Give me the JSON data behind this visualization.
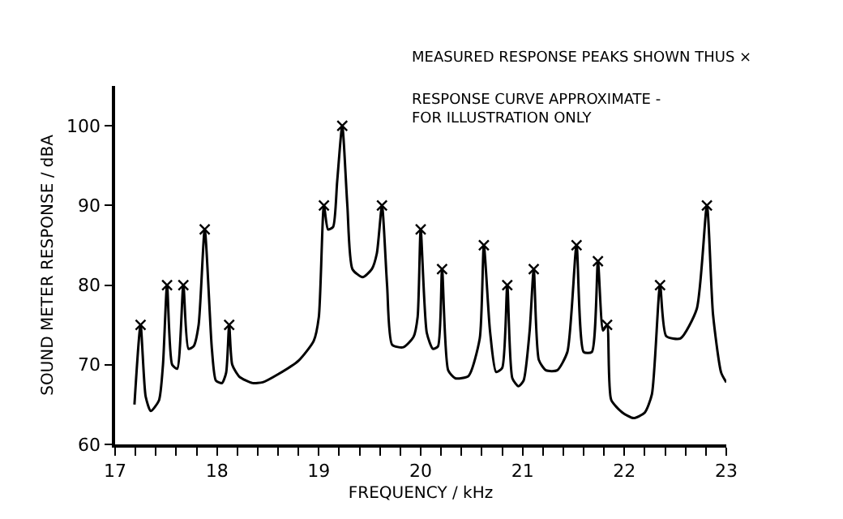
{
  "chart_data": {
    "type": "line",
    "xlabel": "FREQUENCY / kHz",
    "ylabel": "SOUND METER RESPONSE / dBA",
    "annotations": [
      "MEASURED RESPONSE PEAKS SHOWN THUS ×",
      "RESPONSE CURVE APPROXIMATE -\nFOR ILLUSTRATION ONLY"
    ],
    "series": [
      {
        "color": "#000000",
        "marker": "none",
        "line_style": "solid",
        "x": [
          17.19,
          17.25,
          17.3,
          17.35,
          17.43,
          17.47,
          17.51,
          17.56,
          17.61,
          17.67,
          17.72,
          17.77,
          17.82,
          17.88,
          17.95,
          17.99,
          18.05,
          18.09,
          18.12,
          18.15,
          18.22,
          18.35,
          18.45,
          18.6,
          18.8,
          18.95,
          19.0,
          19.05,
          19.09,
          19.14,
          19.18,
          19.23,
          19.28,
          19.33,
          19.43,
          19.52,
          19.57,
          19.62,
          19.67,
          19.72,
          19.83,
          19.93,
          19.97,
          20.0,
          20.06,
          20.12,
          20.17,
          20.21,
          20.27,
          20.34,
          20.47,
          20.58,
          20.62,
          20.68,
          20.74,
          20.8,
          20.85,
          20.9,
          20.96,
          21.01,
          21.07,
          21.11,
          21.16,
          21.23,
          21.34,
          21.44,
          21.53,
          21.6,
          21.68,
          21.74,
          21.79,
          21.83,
          21.87,
          21.98,
          22.09,
          22.2,
          22.27,
          22.35,
          22.41,
          22.55,
          22.71,
          22.81,
          22.87,
          22.95,
          23.0
        ],
        "values": [
          65,
          75,
          66,
          64.2,
          65.5,
          70,
          80,
          70,
          69.5,
          80,
          72,
          72.3,
          75,
          87,
          72,
          68,
          67.7,
          69,
          75,
          70,
          68.5,
          67.7,
          67.8,
          68.8,
          70.5,
          73,
          76,
          90,
          87,
          87.3,
          93,
          100,
          90,
          82,
          81,
          82,
          84,
          90,
          80,
          72.5,
          72.2,
          73.5,
          76,
          87,
          74,
          72,
          72.3,
          82,
          69.3,
          68.3,
          68.6,
          73.3,
          85,
          74.3,
          69.1,
          69.6,
          80,
          68.3,
          67.3,
          68,
          74.3,
          82,
          70.6,
          69.3,
          69.3,
          71.6,
          85,
          71.6,
          71.6,
          83,
          74.3,
          75,
          65.6,
          64,
          63.3,
          64,
          66.3,
          80,
          73.6,
          73.3,
          77,
          90,
          76.3,
          69,
          67.8
        ]
      },
      {
        "type": "scatter",
        "color": "#000000",
        "marker": "cross",
        "x": [
          17.25,
          17.51,
          17.67,
          17.88,
          18.12,
          19.05,
          19.23,
          19.62,
          20.0,
          20.21,
          20.62,
          20.85,
          21.11,
          21.53,
          21.74,
          21.83,
          22.35,
          22.81
        ],
        "values": [
          75,
          80,
          80,
          87,
          75,
          90,
          100,
          90,
          87,
          82,
          85,
          80,
          82,
          85,
          83,
          75,
          80,
          90
        ]
      }
    ],
    "xlim": [
      17,
      23
    ],
    "xticks": [
      17,
      {
        "value": 17.2,
        "label": null
      },
      {
        "value": 17.4,
        "label": null
      },
      {
        "value": 17.6,
        "label": null
      },
      {
        "value": 17.8,
        "label": null
      },
      18,
      {
        "value": 18.2,
        "label": null
      },
      {
        "value": 18.4,
        "label": null
      },
      {
        "value": 18.6,
        "label": null
      },
      {
        "value": 18.8,
        "label": null
      },
      19,
      {
        "value": 19.2,
        "label": null
      },
      {
        "value": 19.4,
        "label": null
      },
      {
        "value": 19.6,
        "label": null
      },
      {
        "value": 19.8,
        "label": null
      },
      20,
      {
        "value": 20.2,
        "label": null
      },
      {
        "value": 20.4,
        "label": null
      },
      {
        "value": 20.6,
        "label": null
      },
      {
        "value": 20.8,
        "label": null
      },
      21,
      {
        "value": 21.2,
        "label": null
      },
      {
        "value": 21.4,
        "label": null
      },
      {
        "value": 21.6,
        "label": null
      },
      {
        "value": 21.8,
        "label": null
      },
      22,
      {
        "value": 22.2,
        "label": null
      },
      {
        "value": 22.4,
        "label": null
      },
      {
        "value": 22.6,
        "label": null
      },
      {
        "value": 22.8,
        "label": null
      },
      23
    ],
    "ylim": [
      60,
      105
    ],
    "yticks": [
      60,
      70,
      80,
      90,
      100
    ]
  }
}
